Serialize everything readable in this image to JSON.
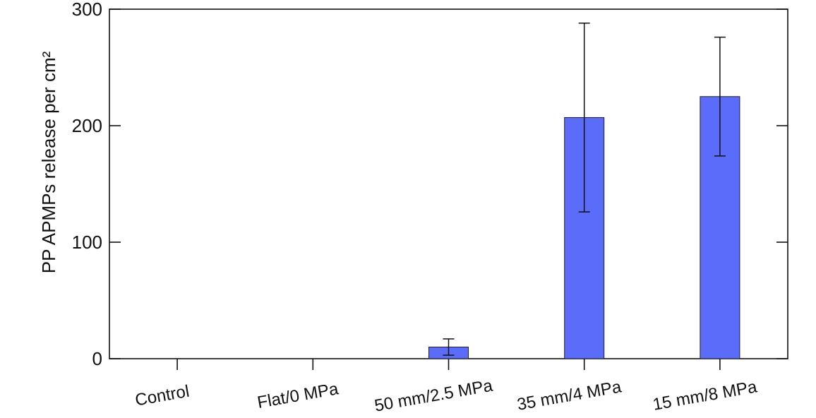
{
  "chart_data": {
    "type": "bar",
    "title": "",
    "xlabel": "",
    "ylabel": "PP APMPs release per cm²",
    "ylim": [
      0,
      300
    ],
    "yticks": [
      0,
      100,
      200,
      300
    ],
    "grid": false,
    "categories": [
      "Control",
      "Flat/0 MPa",
      "50 mm/2.5 MPa",
      "35 mm/4 MPa",
      "15 mm/8 MPa"
    ],
    "values": [
      0,
      0,
      10,
      207,
      225
    ],
    "errors": [
      0,
      0,
      7,
      81,
      51
    ],
    "bar_color": "#5b6cfa"
  }
}
